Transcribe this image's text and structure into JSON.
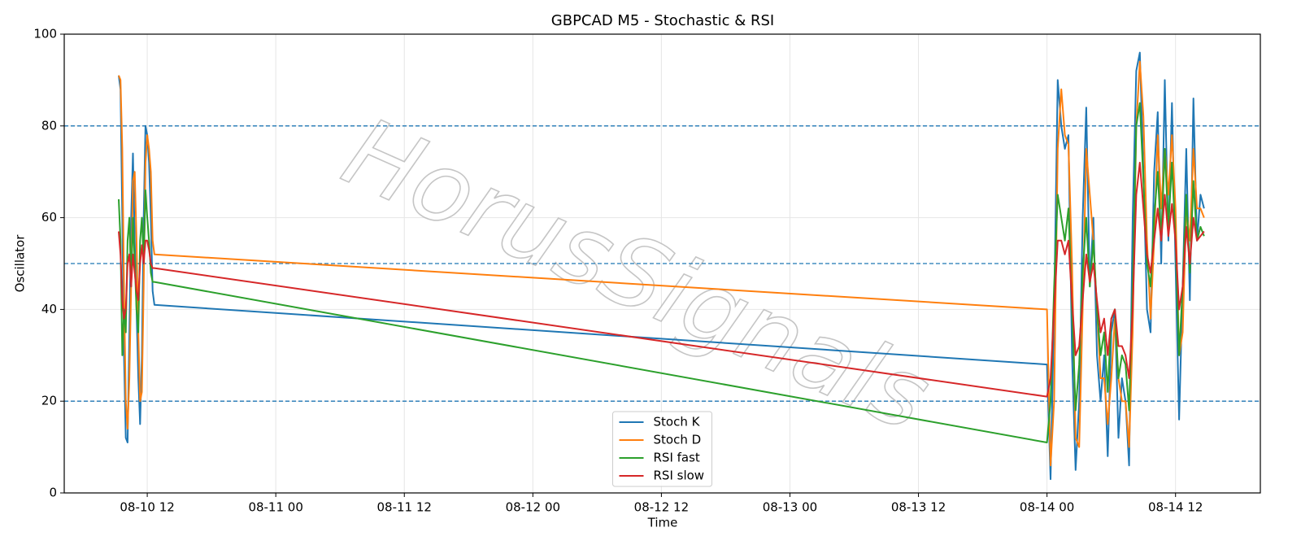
{
  "chart_data": {
    "type": "line",
    "title": "GBPCAD M5 - Stochastic & RSI",
    "xlabel": "Time",
    "ylabel": "Oscillator",
    "watermark": "HorusSignals",
    "x": [
      "08-10 09:20",
      "08-10 09:30",
      "08-10 09:40",
      "08-10 09:50",
      "08-10 10:00",
      "08-10 10:10",
      "08-10 10:20",
      "08-10 10:30",
      "08-10 10:40",
      "08-10 10:50",
      "08-10 11:00",
      "08-10 11:10",
      "08-10 11:20",
      "08-10 11:30",
      "08-10 11:40",
      "08-10 11:50",
      "08-10 12:00",
      "08-10 12:10",
      "08-10 12:20",
      "08-10 12:30",
      "08-10 12:40",
      "08-14 00:00",
      "08-14 00:20",
      "08-14 00:40",
      "08-14 01:00",
      "08-14 01:20",
      "08-14 01:40",
      "08-14 02:00",
      "08-14 02:20",
      "08-14 02:40",
      "08-14 03:00",
      "08-14 03:20",
      "08-14 03:40",
      "08-14 04:00",
      "08-14 04:20",
      "08-14 04:40",
      "08-14 05:00",
      "08-14 05:20",
      "08-14 05:40",
      "08-14 06:00",
      "08-14 06:20",
      "08-14 06:40",
      "08-14 07:00",
      "08-14 07:20",
      "08-14 07:40",
      "08-14 08:00",
      "08-14 08:20",
      "08-14 08:40",
      "08-14 09:00",
      "08-14 09:20",
      "08-14 09:40",
      "08-14 10:00",
      "08-14 10:20",
      "08-14 10:40",
      "08-14 11:00",
      "08-14 11:20",
      "08-14 11:40",
      "08-14 12:00",
      "08-14 12:20",
      "08-14 12:40",
      "08-14 13:00",
      "08-14 13:20",
      "08-14 13:40",
      "08-14 14:00",
      "08-14 14:20",
      "08-14 14:40"
    ],
    "series": [
      {
        "name": "Stoch K",
        "color": "#1f77b4",
        "values": [
          91,
          88,
          60,
          30,
          12,
          11,
          35,
          60,
          74,
          55,
          40,
          25,
          15,
          30,
          60,
          80,
          78,
          72,
          60,
          44,
          41,
          28,
          3,
          40,
          90,
          80,
          75,
          78,
          30,
          5,
          20,
          60,
          84,
          45,
          60,
          30,
          20,
          30,
          8,
          35,
          40,
          12,
          25,
          20,
          6,
          60,
          92,
          96,
          70,
          40,
          35,
          70,
          83,
          50,
          90,
          55,
          85,
          50,
          16,
          45,
          75,
          42,
          86,
          55,
          65,
          62
        ]
      },
      {
        "name": "Stoch D",
        "color": "#ff7f0e",
        "values": [
          91,
          90,
          75,
          45,
          20,
          14,
          25,
          45,
          68,
          70,
          55,
          35,
          20,
          22,
          45,
          72,
          78,
          75,
          70,
          55,
          52,
          40,
          6,
          20,
          75,
          88,
          78,
          76,
          50,
          12,
          10,
          40,
          75,
          65,
          55,
          40,
          25,
          25,
          15,
          25,
          38,
          25,
          20,
          20,
          10,
          35,
          80,
          94,
          82,
          55,
          38,
          55,
          78,
          62,
          75,
          65,
          78,
          62,
          30,
          35,
          62,
          55,
          75,
          62,
          62,
          60
        ]
      },
      {
        "name": "RSI fast",
        "color": "#2ca02c",
        "values": [
          64,
          55,
          30,
          40,
          35,
          55,
          60,
          45,
          60,
          50,
          40,
          35,
          55,
          60,
          50,
          66,
          60,
          55,
          48,
          46,
          46,
          11,
          20,
          45,
          65,
          60,
          55,
          62,
          40,
          18,
          28,
          48,
          60,
          45,
          55,
          40,
          30,
          35,
          22,
          38,
          40,
          25,
          30,
          28,
          18,
          45,
          80,
          85,
          68,
          50,
          45,
          60,
          70,
          55,
          75,
          58,
          72,
          55,
          30,
          45,
          65,
          48,
          68,
          55,
          58,
          56
        ]
      },
      {
        "name": "RSI slow",
        "color": "#d62728",
        "values": [
          57,
          52,
          42,
          38,
          40,
          50,
          52,
          45,
          52,
          48,
          44,
          42,
          50,
          54,
          50,
          55,
          55,
          53,
          50,
          49,
          49,
          21,
          25,
          40,
          55,
          55,
          52,
          55,
          42,
          30,
          32,
          42,
          52,
          46,
          50,
          42,
          35,
          38,
          30,
          38,
          40,
          32,
          32,
          30,
          25,
          40,
          65,
          72,
          62,
          52,
          48,
          55,
          62,
          55,
          65,
          56,
          63,
          55,
          40,
          45,
          58,
          50,
          60,
          55,
          56,
          57
        ]
      }
    ],
    "hlines": [
      20,
      50,
      80
    ],
    "hline_color": "#1f77b4",
    "xlim": [
      "08-10 04:15",
      "08-14 19:55"
    ],
    "xticks": [
      "08-10 12",
      "08-11 00",
      "08-11 12",
      "08-12 00",
      "08-12 12",
      "08-13 00",
      "08-13 12",
      "08-14 00",
      "08-14 12"
    ],
    "ylim": [
      0,
      100
    ],
    "yticks": [
      0,
      20,
      40,
      60,
      80,
      100
    ],
    "grid": true,
    "legend": "lower center"
  }
}
